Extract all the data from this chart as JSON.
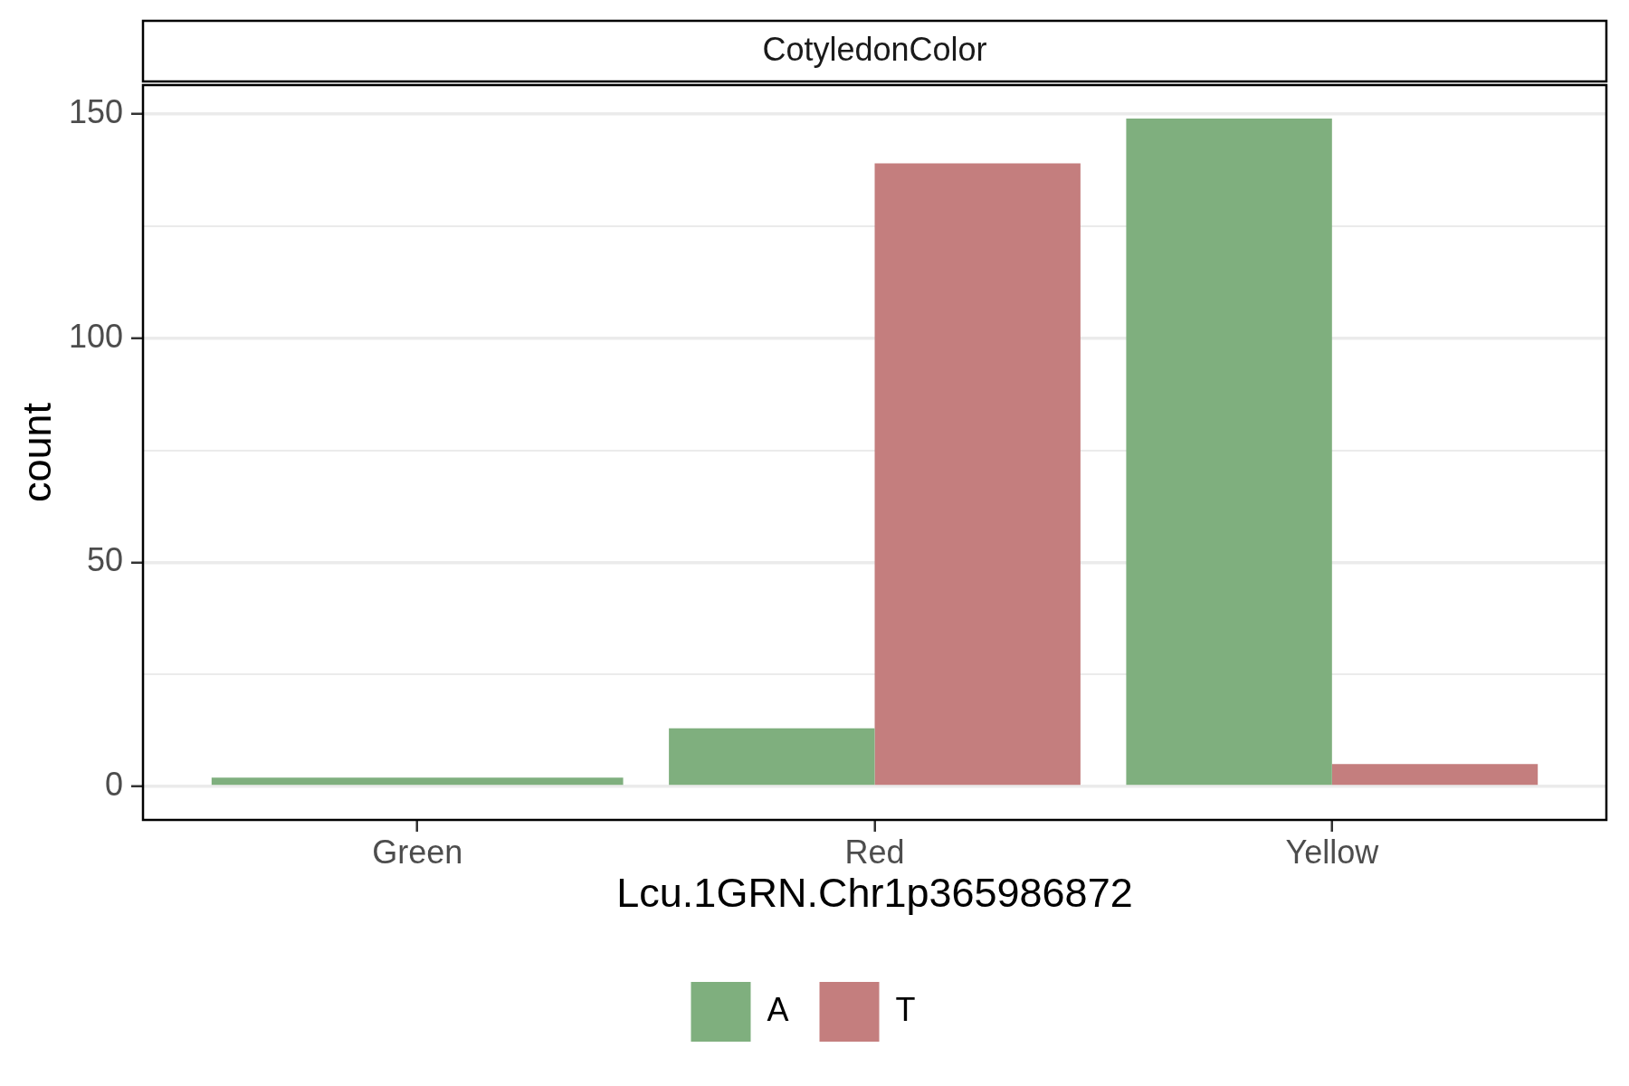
{
  "chart_data": {
    "type": "bar",
    "title": "CotyledonColor",
    "xlabel": "Lcu.1GRN.Chr1p365986872",
    "ylabel": "count",
    "categories": [
      "Green",
      "Red",
      "Yellow"
    ],
    "series": [
      {
        "name": "A",
        "color": "#7faf7e",
        "values": [
          2,
          13,
          149
        ]
      },
      {
        "name": "T",
        "color": "#c47e7e",
        "values": [
          null,
          139,
          5
        ]
      }
    ],
    "ylim": [
      -7.45,
      156.45
    ],
    "yticks": [
      0,
      {
        "value": 25,
        "label": null
      },
      50,
      {
        "value": 75,
        "label": null
      },
      100,
      {
        "value": 125,
        "label": null
      },
      150
    ],
    "grid": "y",
    "legend": "bottom"
  }
}
